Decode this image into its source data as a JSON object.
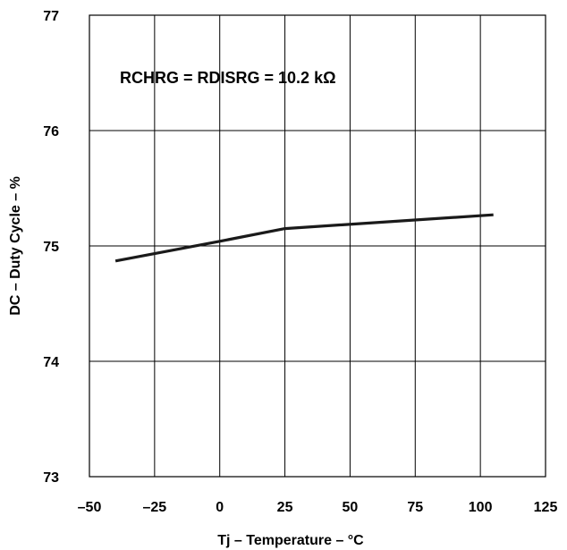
{
  "chart_data": {
    "type": "line",
    "annotation": "RCHRG = RDISRG = 10.2 kΩ",
    "xlabel": "Tj – Temperature – °C",
    "ylabel": "DC – Duty Cycle – %",
    "xlim": [
      -50,
      125
    ],
    "ylim": [
      73,
      77
    ],
    "x_ticks": [
      -50,
      -25,
      0,
      25,
      50,
      75,
      100,
      125
    ],
    "x_tick_labels": [
      "–50",
      "–25",
      "0",
      "25",
      "50",
      "75",
      "100",
      "125"
    ],
    "y_ticks": [
      73,
      74,
      75,
      76,
      77
    ],
    "y_tick_labels": [
      "73",
      "74",
      "75",
      "76",
      "77"
    ],
    "grid": true,
    "series": [
      {
        "x": [
          -40,
          0,
          25,
          105
        ],
        "y": [
          74.87,
          75.04,
          75.15,
          75.27
        ]
      }
    ]
  }
}
